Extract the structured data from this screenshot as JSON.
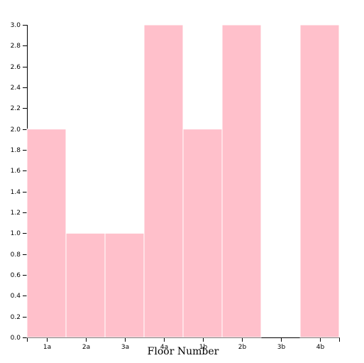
{
  "chart_data": {
    "type": "bar",
    "categories": [
      "1a",
      "2a",
      "3a",
      "4a",
      "1b",
      "2b",
      "3b",
      "4b"
    ],
    "values": [
      2,
      1,
      1,
      3,
      2,
      3,
      0,
      3
    ],
    "title": "",
    "xlabel": "Floor Number",
    "ylabel": "",
    "ylim": [
      0,
      3
    ],
    "yticks": [
      "0.0",
      "0.2",
      "0.4",
      "0.6",
      "0.8",
      "1.0",
      "1.2",
      "1.4",
      "1.6",
      "1.8",
      "2.0",
      "2.2",
      "2.4",
      "2.6",
      "2.8",
      "3.0"
    ],
    "grid": false,
    "colors": {
      "bar": "#ffc0cb",
      "bar_stroke": "#ffffff",
      "axis": "#000000"
    }
  }
}
